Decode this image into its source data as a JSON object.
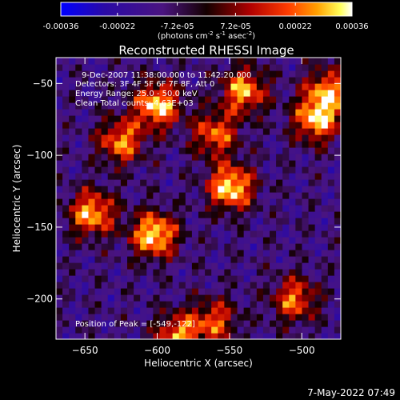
{
  "chart_data": {
    "type": "heatmap",
    "title": "Reconstructed RHESSI Image",
    "xlabel": "Heliocentric X (arcsec)",
    "ylabel": "Heliocentric Y (arcsec)",
    "xlim": [
      -670,
      -473
    ],
    "ylim": [
      -228,
      -32
    ],
    "x_ticks": [
      -650,
      -600,
      -550,
      -500
    ],
    "y_ticks": [
      -200,
      -150,
      -100,
      -50
    ],
    "colorbar": {
      "label_text": "(photons cm",
      "label_sup1": "-2",
      "label_mid": " s",
      "label_sup2": "-1",
      "label_mid2": " asec",
      "label_sup3": "-2",
      "label_end": ")",
      "range": [
        -0.00036,
        0.00036
      ],
      "ticks": [
        -0.00036,
        -0.00022,
        -7.2e-05,
        7.2e-05,
        0.00022,
        0.00036
      ],
      "tick_labels": [
        "-0.00036",
        "-0.00022",
        "-7.2e-05",
        "7.2e-05",
        "0.00022",
        "0.00036"
      ],
      "colors": [
        "#0000ff",
        "#2a0aa6",
        "#4a1480",
        "#2a0000",
        "#9c0000",
        "#ff2a00",
        "#ff9a00",
        "#ffff50",
        "#ffffff"
      ]
    },
    "grid": false,
    "annotations": [
      "9-Dec-2007 11:38:00.000 to 11:42:20.000",
      "Detectors: 3F 4F 5F 6F 7F 8F, Att 0",
      "Energy Range: 25.0 - 50.0 keV",
      "Clean     Total counts: 4.63E+03",
      "Position of Peak = [-549,-122]"
    ],
    "peak": {
      "x": -549,
      "y": -122
    },
    "bright_regions": [
      {
        "x": -600,
        "y": -65,
        "value": 0.00034
      },
      {
        "x": -540,
        "y": -55,
        "value": 0.00028
      },
      {
        "x": -560,
        "y": -85,
        "value": 0.00022
      },
      {
        "x": -625,
        "y": -90,
        "value": 0.00025
      },
      {
        "x": -645,
        "y": -140,
        "value": 0.0003
      },
      {
        "x": -602,
        "y": -155,
        "value": 0.00036
      },
      {
        "x": -549,
        "y": -122,
        "value": 0.00036
      },
      {
        "x": -490,
        "y": -75,
        "value": 0.0003
      },
      {
        "x": -482,
        "y": -55,
        "value": 0.00025
      },
      {
        "x": -585,
        "y": -225,
        "value": 0.00025
      },
      {
        "x": -505,
        "y": -200,
        "value": 0.00022
      },
      {
        "x": -560,
        "y": -215,
        "value": 0.00018
      }
    ]
  },
  "footer": {
    "timestamp": "7-May-2022 07:49"
  }
}
